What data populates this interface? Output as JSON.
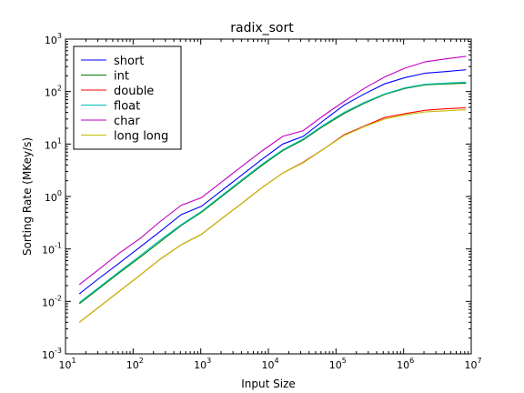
{
  "chart_data": {
    "type": "line",
    "title": "radix_sort",
    "xlabel": "Input Size",
    "ylabel": "Sorting Rate (MKey/s)",
    "xscale": "log",
    "yscale": "log",
    "xlim": [
      10,
      10000000
    ],
    "ylim": [
      0.001,
      1000
    ],
    "grid": false,
    "legend_position": "top-left",
    "x_ticks": [
      {
        "value": 10,
        "base": "10",
        "exp": "1"
      },
      {
        "value": 100,
        "base": "10",
        "exp": "2"
      },
      {
        "value": 1000,
        "base": "10",
        "exp": "3"
      },
      {
        "value": 10000,
        "base": "10",
        "exp": "4"
      },
      {
        "value": 100000,
        "base": "10",
        "exp": "5"
      },
      {
        "value": 1000000,
        "base": "10",
        "exp": "6"
      },
      {
        "value": 10000000,
        "base": "10",
        "exp": "7"
      }
    ],
    "y_ticks": [
      {
        "value": 0.001,
        "base": "10",
        "exp": "-3"
      },
      {
        "value": 0.01,
        "base": "10",
        "exp": "-2"
      },
      {
        "value": 0.1,
        "base": "10",
        "exp": "-1"
      },
      {
        "value": 1,
        "base": "10",
        "exp": "0"
      },
      {
        "value": 10,
        "base": "10",
        "exp": "1"
      },
      {
        "value": 100,
        "base": "10",
        "exp": "2"
      },
      {
        "value": 1000,
        "base": "10",
        "exp": "3"
      }
    ],
    "x": [
      16,
      32,
      64,
      128,
      256,
      512,
      1024,
      2048,
      4096,
      8192,
      16384,
      32768,
      65536,
      131072,
      262144,
      524288,
      1048576,
      2097152,
      4194304,
      8388608
    ],
    "series": [
      {
        "name": "short",
        "color": "#0000ff",
        "values": [
          0.014,
          0.028,
          0.055,
          0.11,
          0.22,
          0.45,
          0.65,
          1.3,
          2.6,
          5.2,
          10,
          14,
          28,
          55,
          90,
          140,
          185,
          225,
          240,
          260
        ]
      },
      {
        "name": "int",
        "color": "#008000",
        "values": [
          0.009,
          0.018,
          0.036,
          0.07,
          0.14,
          0.28,
          0.5,
          1.0,
          2.0,
          4.0,
          7.5,
          12,
          22,
          38,
          60,
          88,
          115,
          135,
          140,
          145
        ]
      },
      {
        "name": "double",
        "color": "#ff0000",
        "values": [
          0.004,
          0.008,
          0.016,
          0.032,
          0.065,
          0.12,
          0.19,
          0.38,
          0.75,
          1.5,
          2.8,
          4.5,
          8,
          15,
          22,
          32,
          38,
          44,
          47,
          49
        ]
      },
      {
        "name": "float",
        "color": "#00bfbf",
        "values": [
          0.0095,
          0.019,
          0.038,
          0.075,
          0.15,
          0.29,
          0.52,
          1.05,
          2.1,
          4.2,
          7.8,
          12.5,
          23,
          40,
          62,
          90,
          118,
          138,
          145,
          152
        ]
      },
      {
        "name": "char",
        "color": "#bf00bf",
        "values": [
          0.021,
          0.042,
          0.085,
          0.16,
          0.34,
          0.68,
          0.95,
          1.9,
          3.8,
          7.5,
          14,
          18,
          35,
          65,
          115,
          190,
          280,
          370,
          420,
          470
        ]
      },
      {
        "name": "long long",
        "color": "#bfbf00",
        "values": [
          0.004,
          0.008,
          0.016,
          0.032,
          0.065,
          0.12,
          0.19,
          0.38,
          0.75,
          1.5,
          2.8,
          4.4,
          8,
          14.5,
          21.5,
          30,
          36,
          41,
          43,
          45
        ]
      }
    ]
  }
}
